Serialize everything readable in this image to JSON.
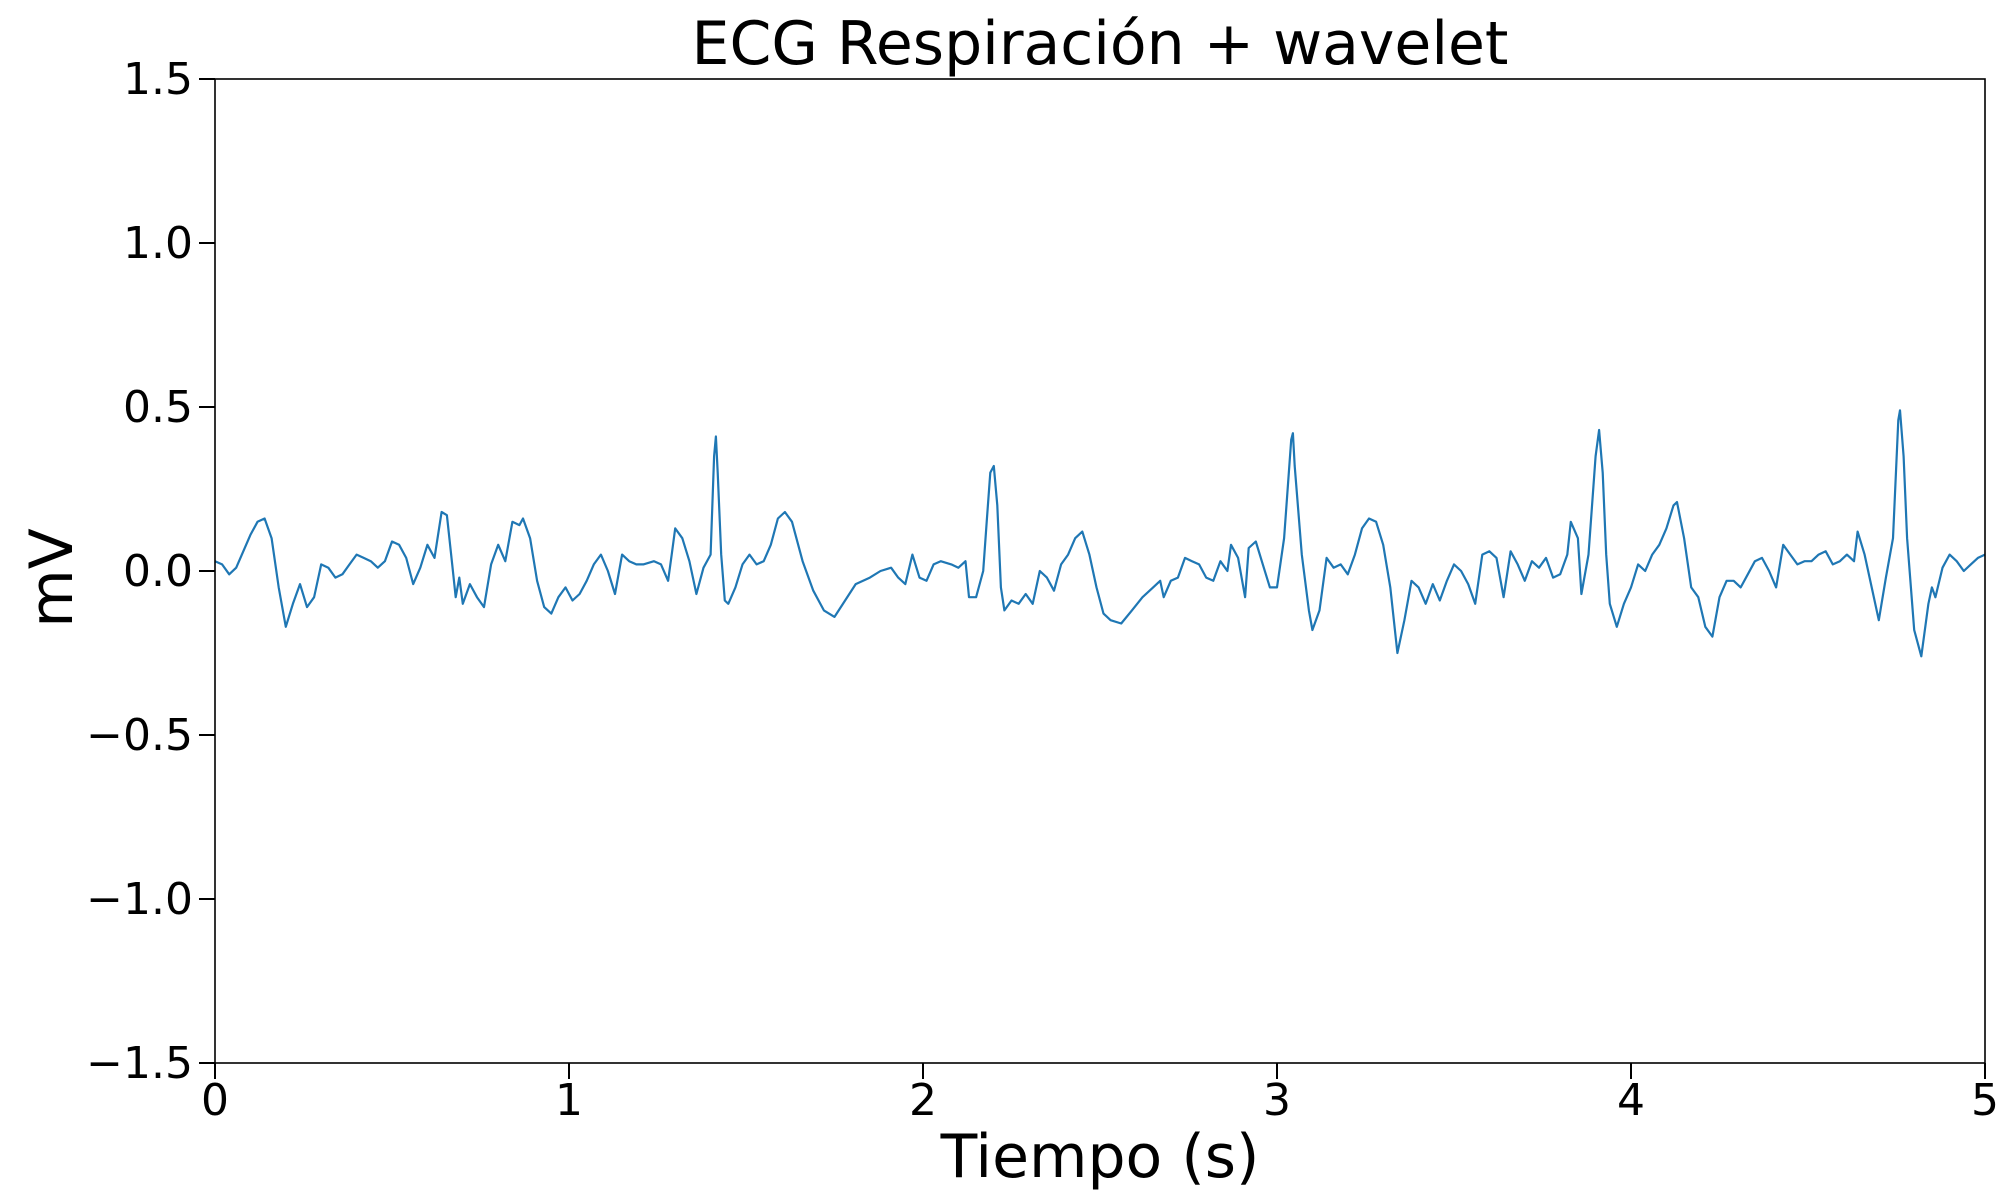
{
  "chart_data": {
    "type": "line",
    "title": "ECG Respiración + wavelet",
    "xlabel": "Tiempo (s)",
    "ylabel": "mV",
    "xlim": [
      0,
      5
    ],
    "ylim": [
      -1.5,
      1.5
    ],
    "grid": false,
    "x_ticks": [
      0,
      1,
      2,
      3,
      4,
      5
    ],
    "x_tick_labels": [
      "0",
      "1",
      "2",
      "3",
      "4",
      "5"
    ],
    "y_ticks": [
      -1.5,
      -1.0,
      -0.5,
      0.0,
      0.5,
      1.0,
      1.5
    ],
    "y_tick_labels": [
      "−1.5",
      "−1.0",
      "−0.5",
      "0.0",
      "0.5",
      "1.0",
      "1.5"
    ],
    "series": [
      {
        "color": "#1f77b4",
        "points": [
          [
            0.0,
            0.03
          ],
          [
            0.02,
            0.02
          ],
          [
            0.04,
            -0.01
          ],
          [
            0.06,
            0.01
          ],
          [
            0.08,
            0.06
          ],
          [
            0.1,
            0.11
          ],
          [
            0.12,
            0.15
          ],
          [
            0.14,
            0.16
          ],
          [
            0.16,
            0.1
          ],
          [
            0.18,
            -0.05
          ],
          [
            0.2,
            -0.17
          ],
          [
            0.22,
            -0.1
          ],
          [
            0.24,
            -0.04
          ],
          [
            0.26,
            -0.11
          ],
          [
            0.28,
            -0.08
          ],
          [
            0.3,
            0.02
          ],
          [
            0.32,
            0.01
          ],
          [
            0.34,
            -0.02
          ],
          [
            0.36,
            -0.01
          ],
          [
            0.38,
            0.02
          ],
          [
            0.4,
            0.05
          ],
          [
            0.42,
            0.04
          ],
          [
            0.44,
            0.03
          ],
          [
            0.46,
            0.01
          ],
          [
            0.48,
            0.03
          ],
          [
            0.5,
            0.09
          ],
          [
            0.52,
            0.08
          ],
          [
            0.54,
            0.04
          ],
          [
            0.56,
            -0.04
          ],
          [
            0.58,
            0.01
          ],
          [
            0.6,
            0.08
          ],
          [
            0.62,
            0.04
          ],
          [
            0.64,
            0.18
          ],
          [
            0.655,
            0.17
          ],
          [
            0.67,
            0.02
          ],
          [
            0.68,
            -0.08
          ],
          [
            0.69,
            -0.02
          ],
          [
            0.7,
            -0.1
          ],
          [
            0.72,
            -0.04
          ],
          [
            0.74,
            -0.08
          ],
          [
            0.76,
            -0.11
          ],
          [
            0.78,
            0.02
          ],
          [
            0.8,
            0.08
          ],
          [
            0.82,
            0.03
          ],
          [
            0.84,
            0.15
          ],
          [
            0.86,
            0.14
          ],
          [
            0.87,
            0.16
          ],
          [
            0.89,
            0.1
          ],
          [
            0.91,
            -0.03
          ],
          [
            0.93,
            -0.11
          ],
          [
            0.95,
            -0.13
          ],
          [
            0.97,
            -0.08
          ],
          [
            0.99,
            -0.05
          ],
          [
            1.01,
            -0.09
          ],
          [
            1.03,
            -0.07
          ],
          [
            1.05,
            -0.03
          ],
          [
            1.07,
            0.02
          ],
          [
            1.09,
            0.05
          ],
          [
            1.11,
            0.0
          ],
          [
            1.13,
            -0.07
          ],
          [
            1.15,
            0.05
          ],
          [
            1.17,
            0.03
          ],
          [
            1.19,
            0.02
          ],
          [
            1.21,
            0.02
          ],
          [
            1.24,
            0.03
          ],
          [
            1.26,
            0.02
          ],
          [
            1.28,
            -0.03
          ],
          [
            1.29,
            0.05
          ],
          [
            1.3,
            0.13
          ],
          [
            1.32,
            0.1
          ],
          [
            1.34,
            0.03
          ],
          [
            1.36,
            -0.07
          ],
          [
            1.38,
            0.01
          ],
          [
            1.4,
            0.05
          ],
          [
            1.41,
            0.35
          ],
          [
            1.415,
            0.41
          ],
          [
            1.42,
            0.3
          ],
          [
            1.43,
            0.05
          ],
          [
            1.44,
            -0.09
          ],
          [
            1.45,
            -0.1
          ],
          [
            1.47,
            -0.05
          ],
          [
            1.49,
            0.02
          ],
          [
            1.51,
            0.05
          ],
          [
            1.53,
            0.02
          ],
          [
            1.55,
            0.03
          ],
          [
            1.57,
            0.08
          ],
          [
            1.59,
            0.16
          ],
          [
            1.61,
            0.18
          ],
          [
            1.63,
            0.15
          ],
          [
            1.66,
            0.03
          ],
          [
            1.69,
            -0.06
          ],
          [
            1.72,
            -0.12
          ],
          [
            1.75,
            -0.14
          ],
          [
            1.78,
            -0.09
          ],
          [
            1.81,
            -0.04
          ],
          [
            1.85,
            -0.02
          ],
          [
            1.88,
            0.0
          ],
          [
            1.91,
            0.01
          ],
          [
            1.93,
            -0.02
          ],
          [
            1.95,
            -0.04
          ],
          [
            1.97,
            0.05
          ],
          [
            1.99,
            -0.02
          ],
          [
            2.01,
            -0.03
          ],
          [
            2.03,
            0.02
          ],
          [
            2.05,
            0.03
          ],
          [
            2.08,
            0.02
          ],
          [
            2.1,
            0.01
          ],
          [
            2.12,
            0.03
          ],
          [
            2.13,
            -0.08
          ],
          [
            2.15,
            -0.08
          ],
          [
            2.17,
            0.0
          ],
          [
            2.18,
            0.15
          ],
          [
            2.19,
            0.3
          ],
          [
            2.2,
            0.32
          ],
          [
            2.21,
            0.2
          ],
          [
            2.22,
            -0.05
          ],
          [
            2.23,
            -0.12
          ],
          [
            2.25,
            -0.09
          ],
          [
            2.27,
            -0.1
          ],
          [
            2.29,
            -0.07
          ],
          [
            2.31,
            -0.1
          ],
          [
            2.33,
            0.0
          ],
          [
            2.35,
            -0.02
          ],
          [
            2.37,
            -0.06
          ],
          [
            2.39,
            0.02
          ],
          [
            2.41,
            0.05
          ],
          [
            2.43,
            0.1
          ],
          [
            2.45,
            0.12
          ],
          [
            2.47,
            0.05
          ],
          [
            2.49,
            -0.05
          ],
          [
            2.51,
            -0.13
          ],
          [
            2.53,
            -0.15
          ],
          [
            2.56,
            -0.16
          ],
          [
            2.59,
            -0.12
          ],
          [
            2.62,
            -0.08
          ],
          [
            2.65,
            -0.05
          ],
          [
            2.67,
            -0.03
          ],
          [
            2.68,
            -0.08
          ],
          [
            2.7,
            -0.03
          ],
          [
            2.72,
            -0.02
          ],
          [
            2.74,
            0.04
          ],
          [
            2.76,
            0.03
          ],
          [
            2.78,
            0.02
          ],
          [
            2.8,
            -0.02
          ],
          [
            2.82,
            -0.03
          ],
          [
            2.84,
            0.03
          ],
          [
            2.86,
            0.0
          ],
          [
            2.87,
            0.08
          ],
          [
            2.89,
            0.04
          ],
          [
            2.91,
            -0.08
          ],
          [
            2.92,
            0.07
          ],
          [
            2.94,
            0.09
          ],
          [
            2.96,
            0.02
          ],
          [
            2.98,
            -0.05
          ],
          [
            3.0,
            -0.05
          ],
          [
            3.02,
            0.1
          ],
          [
            3.04,
            0.4
          ],
          [
            3.045,
            0.42
          ],
          [
            3.05,
            0.32
          ],
          [
            3.07,
            0.05
          ],
          [
            3.09,
            -0.12
          ],
          [
            3.1,
            -0.18
          ],
          [
            3.12,
            -0.12
          ],
          [
            3.14,
            0.04
          ],
          [
            3.16,
            0.01
          ],
          [
            3.18,
            0.02
          ],
          [
            3.2,
            -0.01
          ],
          [
            3.22,
            0.05
          ],
          [
            3.24,
            0.13
          ],
          [
            3.26,
            0.16
          ],
          [
            3.28,
            0.15
          ],
          [
            3.3,
            0.08
          ],
          [
            3.32,
            -0.05
          ],
          [
            3.34,
            -0.25
          ],
          [
            3.36,
            -0.15
          ],
          [
            3.38,
            -0.03
          ],
          [
            3.4,
            -0.05
          ],
          [
            3.42,
            -0.1
          ],
          [
            3.44,
            -0.04
          ],
          [
            3.46,
            -0.09
          ],
          [
            3.48,
            -0.03
          ],
          [
            3.5,
            0.02
          ],
          [
            3.52,
            0.0
          ],
          [
            3.54,
            -0.04
          ],
          [
            3.56,
            -0.1
          ],
          [
            3.58,
            0.05
          ],
          [
            3.6,
            0.06
          ],
          [
            3.62,
            0.04
          ],
          [
            3.64,
            -0.08
          ],
          [
            3.66,
            0.06
          ],
          [
            3.68,
            0.02
          ],
          [
            3.7,
            -0.03
          ],
          [
            3.72,
            0.03
          ],
          [
            3.74,
            0.01
          ],
          [
            3.76,
            0.04
          ],
          [
            3.78,
            -0.02
          ],
          [
            3.8,
            -0.01
          ],
          [
            3.82,
            0.05
          ],
          [
            3.83,
            0.15
          ],
          [
            3.85,
            0.1
          ],
          [
            3.86,
            -0.07
          ],
          [
            3.88,
            0.05
          ],
          [
            3.9,
            0.35
          ],
          [
            3.91,
            0.43
          ],
          [
            3.92,
            0.3
          ],
          [
            3.93,
            0.05
          ],
          [
            3.94,
            -0.1
          ],
          [
            3.96,
            -0.17
          ],
          [
            3.98,
            -0.1
          ],
          [
            4.0,
            -0.05
          ],
          [
            4.02,
            0.02
          ],
          [
            4.04,
            0.0
          ],
          [
            4.06,
            0.05
          ],
          [
            4.08,
            0.08
          ],
          [
            4.1,
            0.13
          ],
          [
            4.12,
            0.2
          ],
          [
            4.13,
            0.21
          ],
          [
            4.15,
            0.1
          ],
          [
            4.17,
            -0.05
          ],
          [
            4.19,
            -0.08
          ],
          [
            4.21,
            -0.17
          ],
          [
            4.23,
            -0.2
          ],
          [
            4.25,
            -0.08
          ],
          [
            4.27,
            -0.03
          ],
          [
            4.29,
            -0.03
          ],
          [
            4.31,
            -0.05
          ],
          [
            4.33,
            -0.01
          ],
          [
            4.35,
            0.03
          ],
          [
            4.37,
            0.04
          ],
          [
            4.39,
            0.0
          ],
          [
            4.41,
            -0.05
          ],
          [
            4.43,
            0.08
          ],
          [
            4.45,
            0.05
          ],
          [
            4.47,
            0.02
          ],
          [
            4.49,
            0.03
          ],
          [
            4.51,
            0.03
          ],
          [
            4.53,
            0.05
          ],
          [
            4.55,
            0.06
          ],
          [
            4.57,
            0.02
          ],
          [
            4.59,
            0.03
          ],
          [
            4.61,
            0.05
          ],
          [
            4.63,
            0.03
          ],
          [
            4.64,
            0.12
          ],
          [
            4.66,
            0.05
          ],
          [
            4.68,
            -0.05
          ],
          [
            4.7,
            -0.15
          ],
          [
            4.72,
            -0.02
          ],
          [
            4.74,
            0.1
          ],
          [
            4.755,
            0.46
          ],
          [
            4.76,
            0.49
          ],
          [
            4.77,
            0.35
          ],
          [
            4.78,
            0.1
          ],
          [
            4.8,
            -0.18
          ],
          [
            4.82,
            -0.26
          ],
          [
            4.84,
            -0.1
          ],
          [
            4.85,
            -0.05
          ],
          [
            4.86,
            -0.08
          ],
          [
            4.88,
            0.01
          ],
          [
            4.9,
            0.05
          ],
          [
            4.92,
            0.03
          ],
          [
            4.94,
            0.0
          ],
          [
            4.96,
            0.02
          ],
          [
            4.98,
            0.04
          ],
          [
            5.0,
            0.05
          ]
        ]
      }
    ]
  }
}
